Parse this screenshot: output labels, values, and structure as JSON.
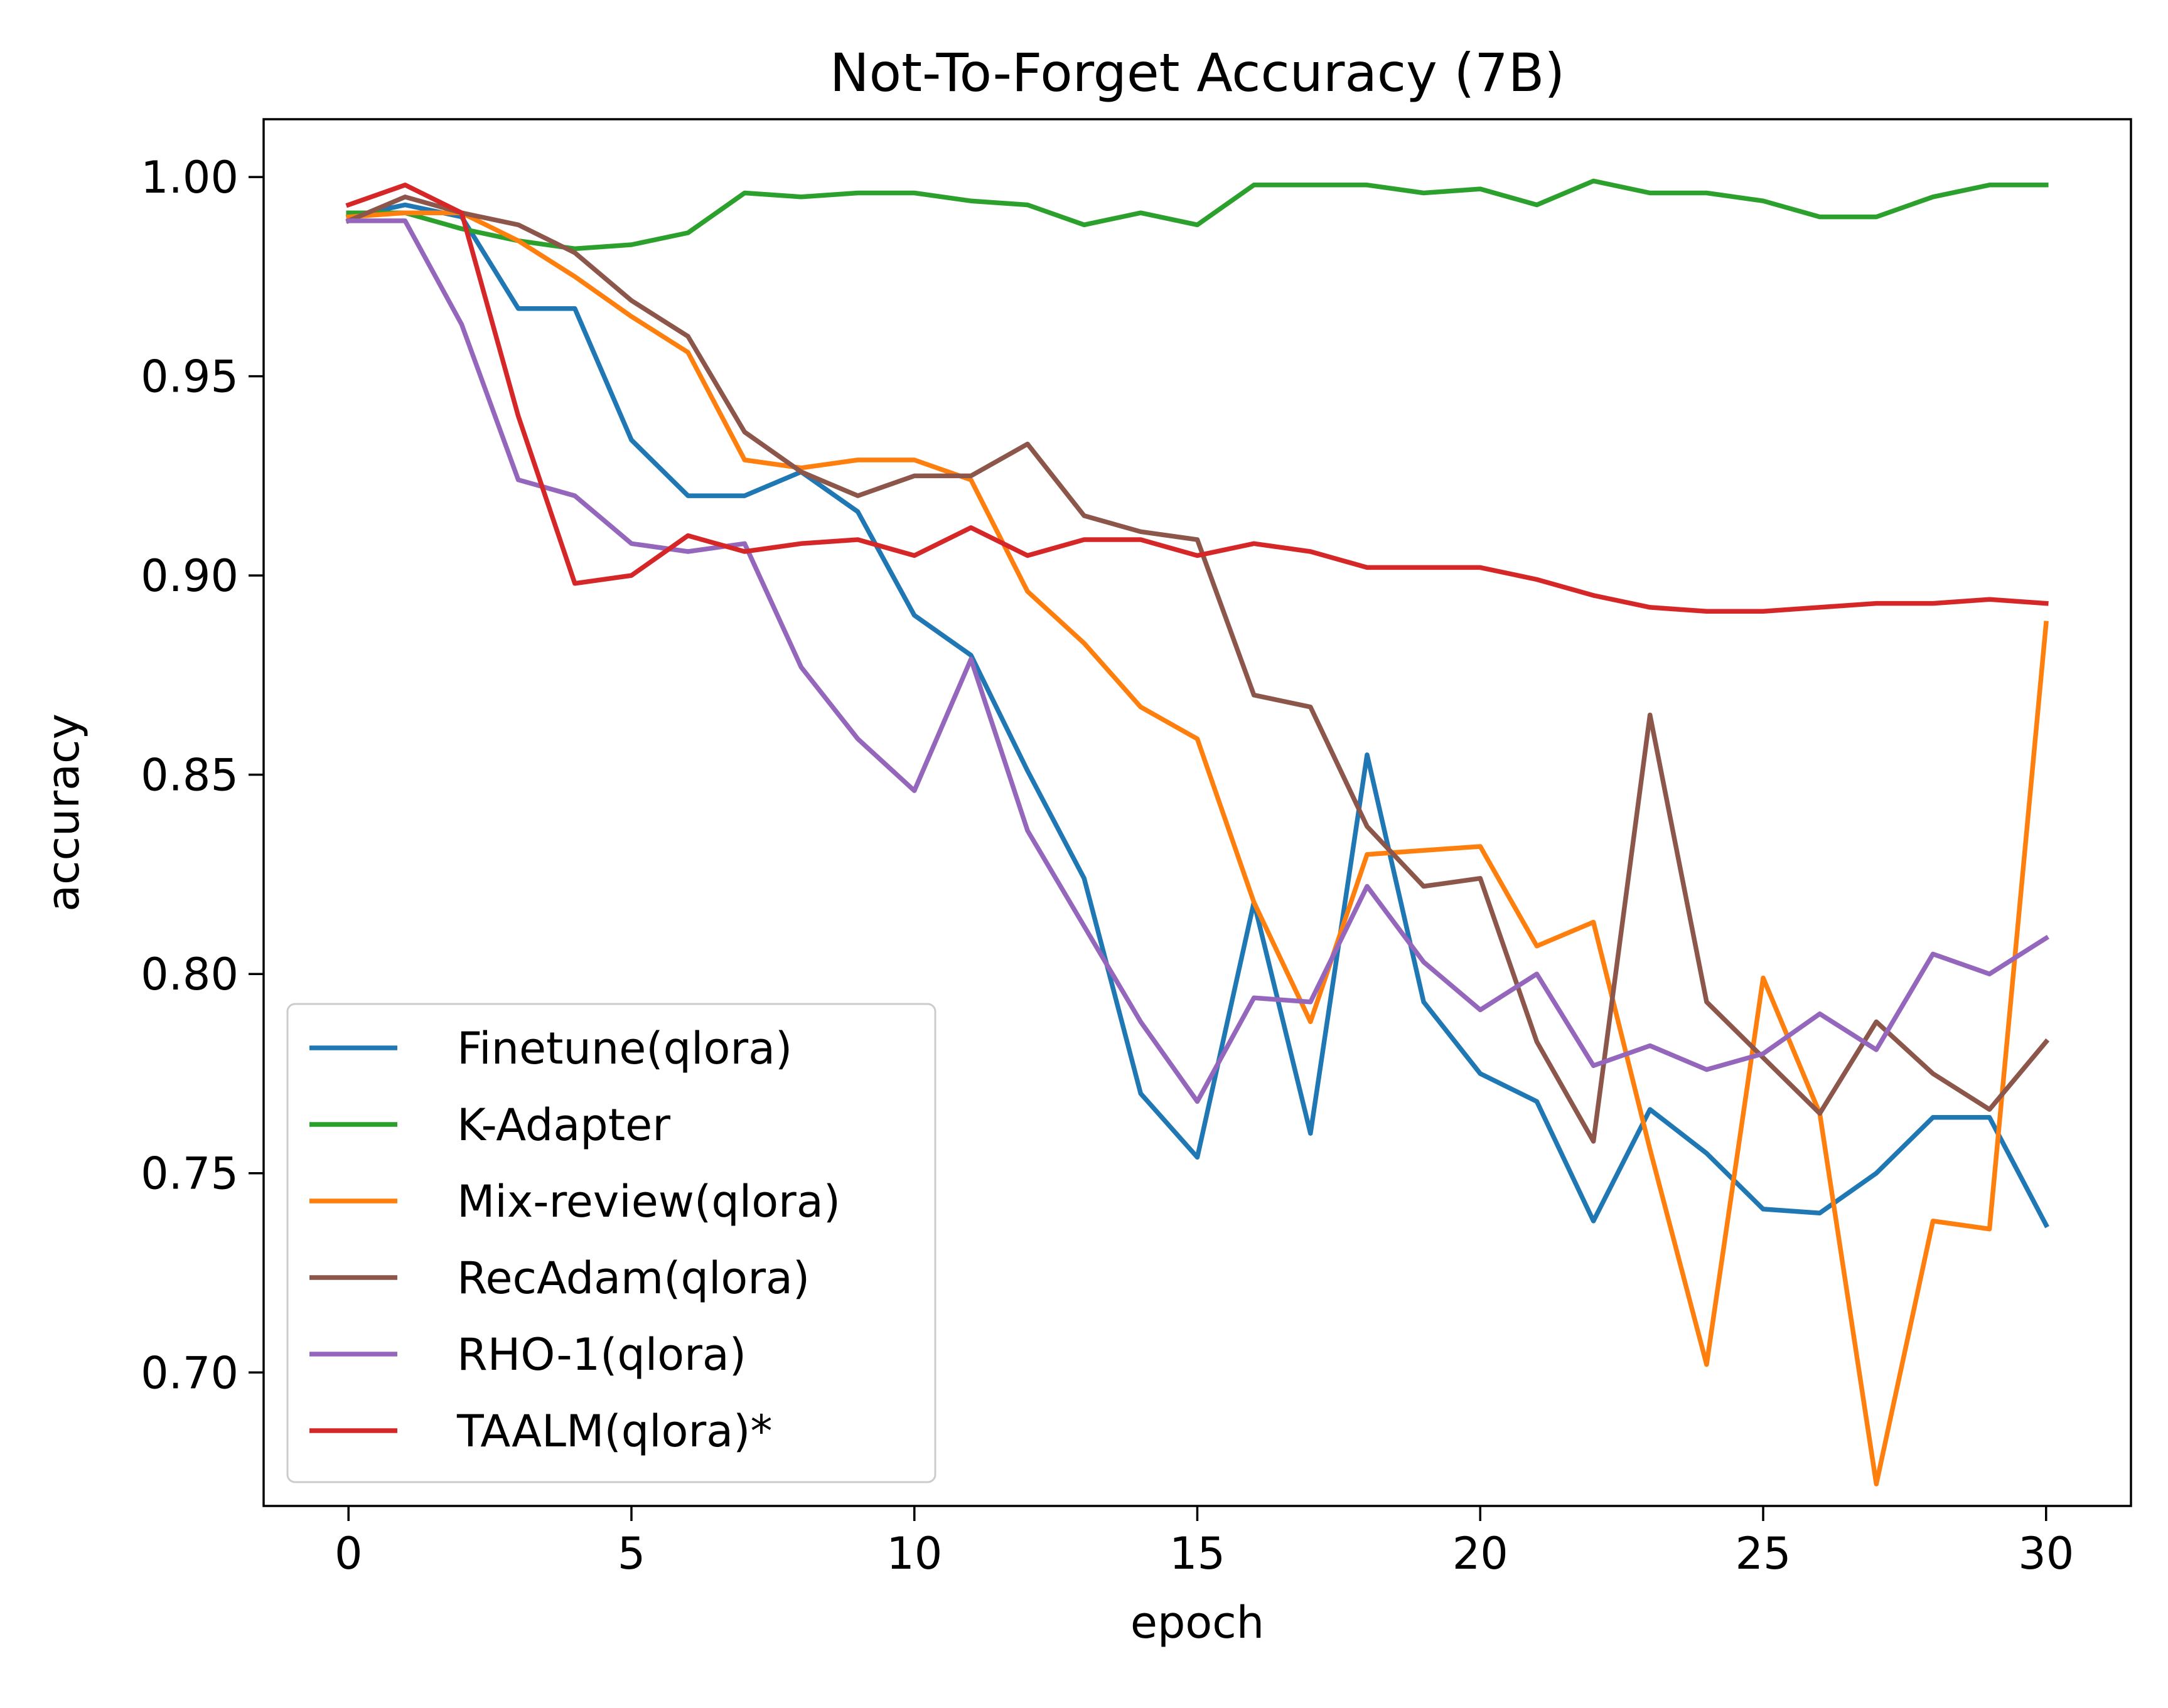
{
  "chart_data": {
    "type": "line",
    "title": "Not-To-Forget Accuracy (7B)",
    "xlabel": "epoch",
    "ylabel": "accuracy",
    "xlim": [
      -1.5,
      31.5
    ],
    "ylim": [
      0.6665,
      1.0145
    ],
    "xticks": [
      0,
      5,
      10,
      15,
      20,
      25,
      30
    ],
    "xtick_labels": [
      "0",
      "5",
      "10",
      "15",
      "20",
      "25",
      "30"
    ],
    "yticks": [
      0.7,
      0.75,
      0.8,
      0.85,
      0.9,
      0.95,
      1.0
    ],
    "ytick_labels": [
      "0.70",
      "0.75",
      "0.80",
      "0.85",
      "0.90",
      "0.95",
      "1.00"
    ],
    "grid": false,
    "legend_position": "lower-left",
    "x": [
      0,
      1,
      2,
      3,
      4,
      5,
      6,
      7,
      8,
      9,
      10,
      11,
      12,
      13,
      14,
      15,
      16,
      17,
      18,
      19,
      20,
      21,
      22,
      23,
      24,
      25,
      26,
      27,
      28,
      29,
      30
    ],
    "series": [
      {
        "name": "Finetune(qlora)",
        "color": "#1f77b4",
        "values": [
          0.99,
          0.993,
          0.99,
          0.967,
          0.967,
          0.934,
          0.92,
          0.92,
          0.926,
          0.916,
          0.89,
          0.88,
          0.851,
          0.824,
          0.77,
          0.754,
          0.818,
          0.76,
          0.855,
          0.793,
          0.775,
          0.768,
          0.738,
          0.766,
          0.755,
          0.741,
          0.74,
          0.75,
          0.764,
          0.764,
          0.737
        ]
      },
      {
        "name": "K-Adapter",
        "color": "#2ca02c",
        "values": [
          0.991,
          0.991,
          0.987,
          0.984,
          0.982,
          0.983,
          0.986,
          0.996,
          0.995,
          0.996,
          0.996,
          0.994,
          0.993,
          0.988,
          0.991,
          0.988,
          0.998,
          0.998,
          0.998,
          0.996,
          0.997,
          0.993,
          0.999,
          0.996,
          0.996,
          0.994,
          0.99,
          0.99,
          0.995,
          0.998,
          0.998
        ]
      },
      {
        "name": "Mix-review(qlora)",
        "color": "#ff7f0e",
        "values": [
          0.99,
          0.991,
          0.991,
          0.984,
          0.975,
          0.965,
          0.956,
          0.929,
          0.927,
          0.929,
          0.929,
          0.924,
          0.896,
          0.883,
          0.867,
          0.859,
          0.818,
          0.788,
          0.83,
          0.831,
          0.832,
          0.807,
          0.813,
          0.756,
          0.702,
          0.799,
          0.765,
          0.672,
          0.738,
          0.736,
          0.888
        ]
      },
      {
        "name": "RecAdam(qlora)",
        "color": "#8c564b",
        "values": [
          0.989,
          0.995,
          0.991,
          0.988,
          0.981,
          0.969,
          0.96,
          0.936,
          0.926,
          0.92,
          0.925,
          0.925,
          0.933,
          0.915,
          0.911,
          0.909,
          0.87,
          0.867,
          0.837,
          0.822,
          0.824,
          0.783,
          0.758,
          0.865,
          0.793,
          0.779,
          0.765,
          0.788,
          0.775,
          0.766,
          0.783
        ]
      },
      {
        "name": "RHO-1(qlora)",
        "color": "#9467bd",
        "values": [
          0.989,
          0.989,
          0.963,
          0.924,
          0.92,
          0.908,
          0.906,
          0.908,
          0.877,
          0.859,
          0.846,
          0.879,
          0.836,
          0.812,
          0.788,
          0.768,
          0.794,
          0.793,
          0.822,
          0.803,
          0.791,
          0.8,
          0.777,
          0.782,
          0.776,
          0.78,
          0.79,
          0.781,
          0.805,
          0.8,
          0.809
        ]
      },
      {
        "name": "TAALM(qlora)*",
        "color": "#d62728",
        "values": [
          0.993,
          0.998,
          0.991,
          0.94,
          0.898,
          0.9,
          0.91,
          0.906,
          0.908,
          0.909,
          0.905,
          0.912,
          0.905,
          0.909,
          0.909,
          0.905,
          0.908,
          0.906,
          0.902,
          0.902,
          0.902,
          0.899,
          0.895,
          0.892,
          0.891,
          0.891,
          0.892,
          0.893,
          0.893,
          0.894,
          0.893
        ]
      }
    ]
  }
}
